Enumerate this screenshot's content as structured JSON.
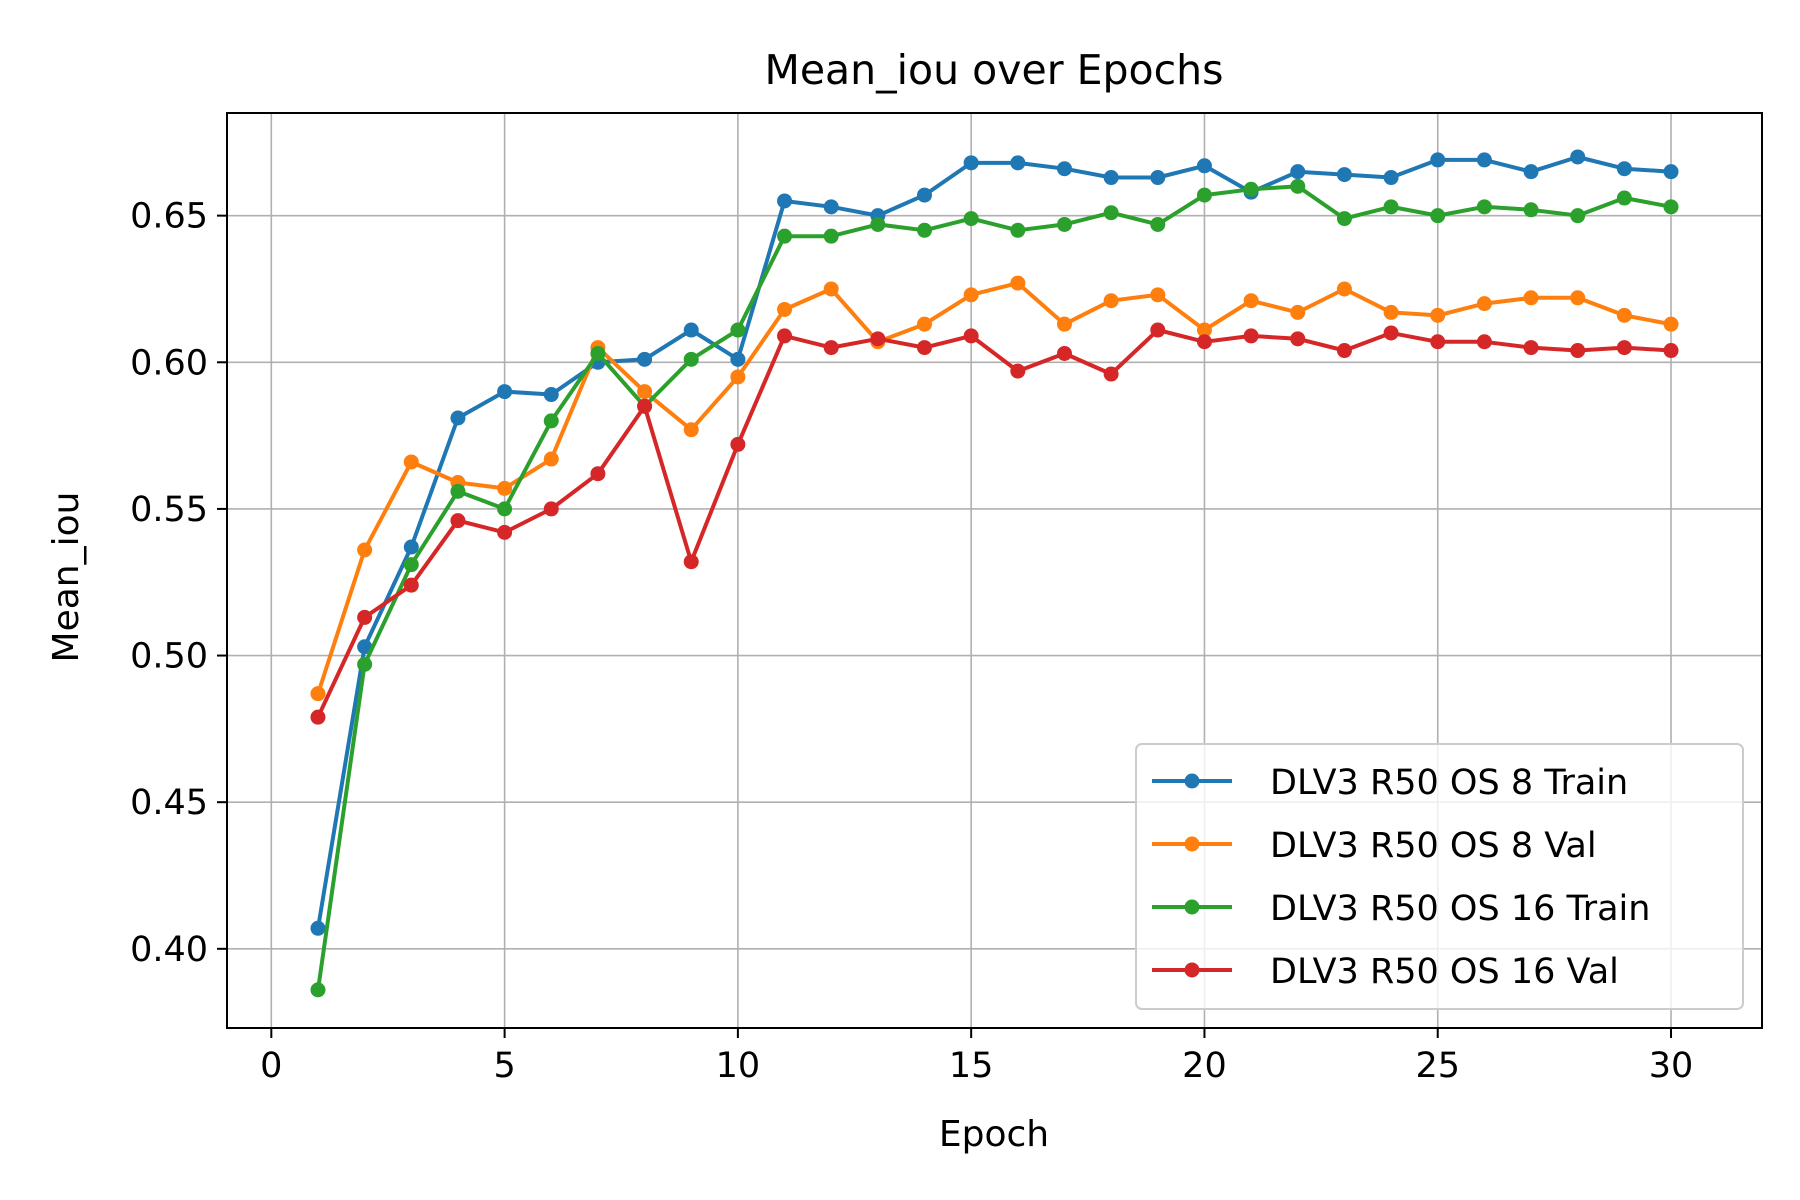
{
  "chart_data": {
    "type": "line",
    "title": "Mean_iou over Epochs",
    "xlabel": "Epoch",
    "ylabel": "Mean_iou",
    "xlim": [
      -0.95,
      31.95
    ],
    "ylim": [
      0.373,
      0.685
    ],
    "xticks": [
      0,
      5,
      10,
      15,
      20,
      25,
      30
    ],
    "xtick_labels": [
      "0",
      "5",
      "10",
      "15",
      "20",
      "25",
      "30"
    ],
    "yticks": [
      0.4,
      0.45,
      0.5,
      0.55,
      0.6,
      0.65
    ],
    "ytick_labels": [
      "0.40",
      "0.45",
      "0.50",
      "0.55",
      "0.60",
      "0.65"
    ],
    "grid": true,
    "legend_position": "lower-right",
    "x": [
      1,
      2,
      3,
      4,
      5,
      6,
      7,
      8,
      9,
      10,
      11,
      12,
      13,
      14,
      15,
      16,
      17,
      18,
      19,
      20,
      21,
      22,
      23,
      24,
      25,
      26,
      27,
      28,
      29,
      30
    ],
    "series": [
      {
        "name": "DLV3 R50 OS 8 Train",
        "color": "#1f77b4",
        "values": [
          0.407,
          0.503,
          0.537,
          0.581,
          0.59,
          0.589,
          0.6,
          0.601,
          0.611,
          0.601,
          0.655,
          0.653,
          0.65,
          0.657,
          0.668,
          0.668,
          0.666,
          0.663,
          0.663,
          0.667,
          0.658,
          0.665,
          0.664,
          0.663,
          0.669,
          0.669,
          0.665,
          0.67,
          0.666,
          0.665
        ]
      },
      {
        "name": "DLV3 R50 OS 8 Val",
        "color": "#ff7f0e",
        "values": [
          0.487,
          0.536,
          0.566,
          0.559,
          0.557,
          0.567,
          0.605,
          0.59,
          0.577,
          0.595,
          0.618,
          0.625,
          0.607,
          0.613,
          0.623,
          0.627,
          0.613,
          0.621,
          0.623,
          0.611,
          0.621,
          0.617,
          0.625,
          0.617,
          0.616,
          0.62,
          0.622,
          0.622,
          0.616,
          0.613
        ]
      },
      {
        "name": "DLV3 R50 OS 16 Train",
        "color": "#2ca02c",
        "values": [
          0.386,
          0.497,
          0.531,
          0.556,
          0.55,
          0.58,
          0.603,
          0.585,
          0.601,
          0.611,
          0.643,
          0.643,
          0.647,
          0.645,
          0.649,
          0.645,
          0.647,
          0.651,
          0.647,
          0.657,
          0.659,
          0.66,
          0.649,
          0.653,
          0.65,
          0.653,
          0.652,
          0.65,
          0.656,
          0.653
        ]
      },
      {
        "name": "DLV3 R50 OS 16 Val",
        "color": "#d62728",
        "values": [
          0.479,
          0.513,
          0.524,
          0.546,
          0.542,
          0.55,
          0.562,
          0.585,
          0.532,
          0.572,
          0.609,
          0.605,
          0.608,
          0.605,
          0.609,
          0.597,
          0.603,
          0.596,
          0.611,
          0.607,
          0.609,
          0.608,
          0.604,
          0.61,
          0.607,
          0.607,
          0.605,
          0.604,
          0.605,
          0.604
        ]
      }
    ]
  }
}
